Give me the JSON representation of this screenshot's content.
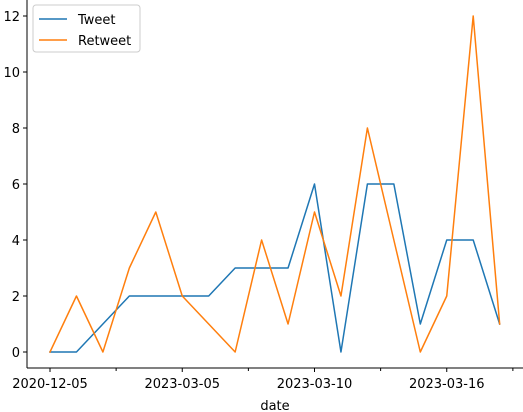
{
  "chart_data": {
    "type": "line",
    "xlabel": "date",
    "ylabel": "",
    "ylim": [
      -0.6,
      12.6
    ],
    "yticks": [
      0,
      2,
      4,
      6,
      8,
      10,
      12
    ],
    "x_tick_labels": [
      {
        "index": 0,
        "label": "2020-12-05"
      },
      {
        "index": 5,
        "label": "2023-03-05"
      },
      {
        "index": 10,
        "label": "2023-03-10"
      },
      {
        "index": 15,
        "label": "2023-03-16"
      }
    ],
    "x_minor_tick_indices": [
      2.5,
      7.5,
      12.5,
      17.5
    ],
    "point_count": 18,
    "legend_position": "upper-left",
    "grid": false,
    "series": [
      {
        "name": "Tweet",
        "color": "#1f77b4",
        "values": [
          0,
          0,
          1,
          2,
          2,
          2,
          2,
          3,
          3,
          3,
          6,
          0,
          6,
          6,
          1,
          4,
          4,
          1
        ]
      },
      {
        "name": "Retweet",
        "color": "#ff7f0e",
        "values": [
          0,
          2,
          0,
          3,
          5,
          2,
          1,
          0,
          4,
          1,
          5,
          2,
          8,
          4,
          0,
          2,
          12,
          1
        ]
      }
    ]
  }
}
